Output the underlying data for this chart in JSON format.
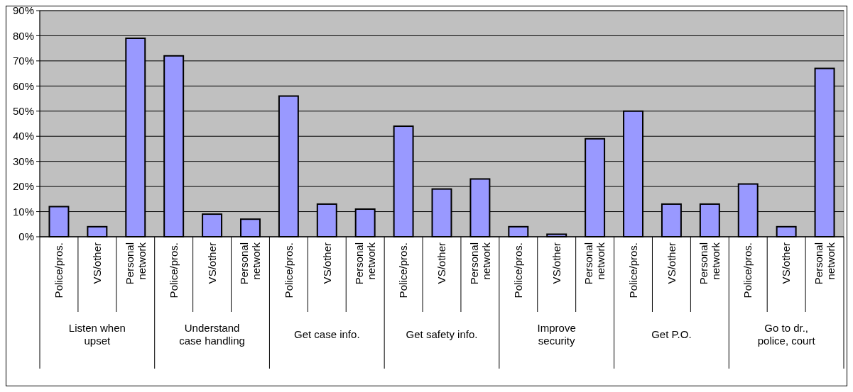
{
  "chart_data": {
    "type": "bar",
    "categories": [
      "Police/pros.",
      "VS/other",
      "Personal network",
      "Police/pros.",
      "VS/other",
      "Personal network",
      "Police/pros.",
      "VS/other",
      "Personal network",
      "Police/pros.",
      "VS/other",
      "Personal network",
      "Police/pros.",
      "VS/other",
      "Personal network",
      "Police/pros.",
      "VS/other",
      "Personal network",
      "Police/pros.",
      "VS/other",
      "Personal network"
    ],
    "values": [
      12,
      4,
      79,
      72,
      9,
      7,
      56,
      13,
      11,
      44,
      19,
      23,
      4,
      1,
      39,
      50,
      13,
      13,
      21,
      4,
      67
    ],
    "color": "#9999ff",
    "annotations": [
      "Listen when upset",
      "Understand case handling",
      "Get case info.",
      "Get safety info.",
      "Improve security",
      "Get P.O.",
      "Go to dr., police, court"
    ],
    "ylim": [
      0,
      90
    ],
    "yticks": [
      {
        "value": 0,
        "label": "0%"
      },
      {
        "value": 10,
        "label": "10%"
      },
      {
        "value": 20,
        "label": "20%"
      },
      {
        "value": 30,
        "label": "30%"
      },
      {
        "value": 40,
        "label": "40%"
      },
      {
        "value": 50,
        "label": "50%"
      },
      {
        "value": 60,
        "label": "60%"
      },
      {
        "value": 70,
        "label": "70%"
      },
      {
        "value": 80,
        "label": "80%"
      },
      {
        "value": 90,
        "label": "90%"
      }
    ],
    "grid": "y"
  }
}
